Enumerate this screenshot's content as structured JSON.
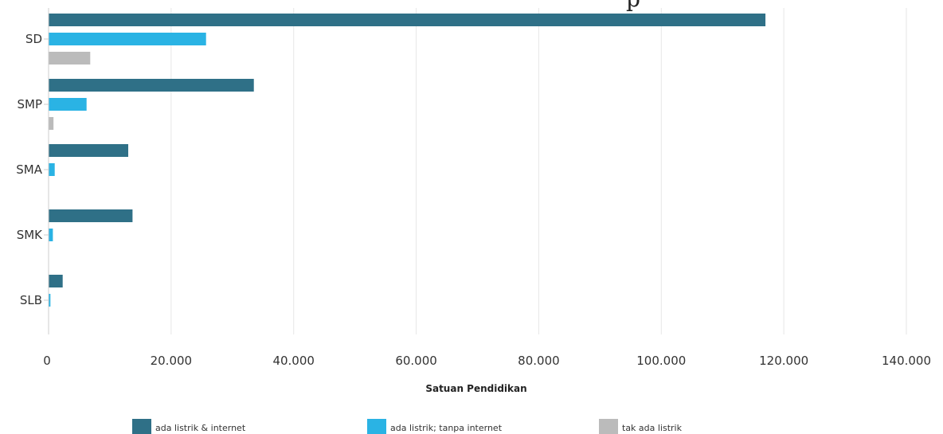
{
  "chart_data": {
    "type": "bar",
    "orientation": "horizontal",
    "title_visible_fragment": "p",
    "categories": [
      "SD",
      "SMP",
      "SMA",
      "SMK",
      "SLB"
    ],
    "series": [
      {
        "name": "ada listrik & internet",
        "color": "#2f7087",
        "values": [
          117000,
          33500,
          13000,
          13700,
          2300
        ]
      },
      {
        "name": "ada listrik; tanpa internet",
        "color": "#2ab3e4",
        "values": [
          25700,
          6200,
          1000,
          700,
          300
        ]
      },
      {
        "name": "tak ada listrik",
        "color": "#bbbbbb",
        "values": [
          6800,
          800,
          0,
          0,
          0
        ]
      }
    ],
    "x_ticks": [
      "0",
      "20.000",
      "40.000",
      "60.000",
      "80.000",
      "100.000",
      "120.000",
      "140.000"
    ],
    "xlim": [
      0,
      140000
    ],
    "xlabel": "Satuan Pendidikan",
    "ylabel": "",
    "grid": true,
    "legend_position": "bottom"
  }
}
